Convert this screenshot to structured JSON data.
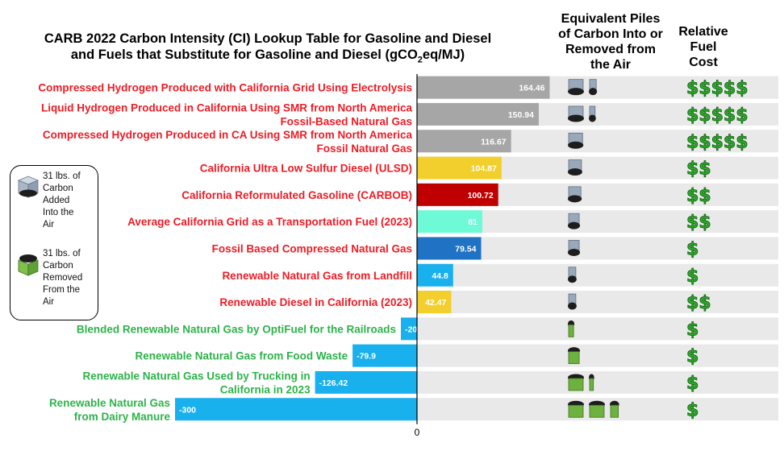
{
  "title_parts": [
    "CARB 2022 Carbon Intensity (CI) Lookup Table for Gasoline and Diesel",
    "and Fuels that Substitute for Gasoline and Diesel (gCO",
    "2",
    "eq/MJ)"
  ],
  "piles_header": [
    "Equivalent Piles",
    "of Carbon Into or",
    "Removed from",
    "the Air"
  ],
  "cost_header": [
    "Relative",
    "Fuel",
    "Cost"
  ],
  "legend": {
    "added": [
      "31 lbs. of",
      "Carbon",
      "Added",
      "Into the",
      "Air"
    ],
    "removed": [
      "31 lbs. of",
      "Carbon",
      "Removed",
      "From the",
      "Air"
    ]
  },
  "colors": {
    "red_label": "#ee1c25",
    "green_label": "#2db34a",
    "gray": "#a6a6a6",
    "yellow": "#f2cf2d",
    "darkred": "#c00000",
    "aqua": "#6efad6",
    "blue": "#1f72c4",
    "lightblue": "#19b0ee",
    "rowbg": "#e9e9e9"
  },
  "chart_data": {
    "type": "bar",
    "orientation": "horizontal",
    "zero_tick": "0",
    "grid": false,
    "categories": [
      [
        "Compressed Hydrogen Produced with California Grid Using Electrolysis"
      ],
      [
        "Liquid Hydrogen Produced in California Using SMR from North America",
        "Fossil-Based Natural Gas"
      ],
      [
        "Compressed Hydrogen Produced in CA Using  SMR from North America",
        "Fossil Natural Gas"
      ],
      [
        "California Ultra Low Sulfur Diesel (ULSD)"
      ],
      [
        "California Reformulated Gasoline (CARBOB)"
      ],
      [
        "Average California Grid as a Transportation Fuel (2023)"
      ],
      [
        "Fossil Based Compressed Natural Gas"
      ],
      [
        "Renewable Natural Gas from Landfill"
      ],
      [
        "Renewable Diesel in California (2023)"
      ],
      [
        "Blended Renewable Natural Gas by OptiFuel for the Railroads"
      ],
      [
        "Renewable Natural Gas from Food Waste"
      ],
      [
        "Renewable Natural Gas Used by Trucking in",
        "California in 2023"
      ],
      [
        "Renewable Natural Gas",
        "from Dairy Manure"
      ]
    ],
    "values": [
      164.46,
      150.94,
      116.67,
      104.87,
      100.72,
      81,
      79.54,
      44.8,
      42.47,
      -20,
      -79.9,
      -126.42,
      -300
    ],
    "value_labels": [
      "164.46",
      "150.94",
      "116.67",
      "104.87",
      "100.72",
      "81",
      "79.54",
      "44.8",
      "42.47",
      "-20",
      "-79.9",
      "-126.42",
      "-300"
    ],
    "bar_colors": [
      "gray",
      "gray",
      "gray",
      "yellow",
      "darkred",
      "aqua",
      "blue",
      "lightblue",
      "yellow",
      "lightblue",
      "lightblue",
      "lightblue",
      "lightblue"
    ],
    "label_colors": [
      "red_label",
      "red_label",
      "red_label",
      "red_label",
      "red_label",
      "red_label",
      "red_label",
      "red_label",
      "red_label",
      "green_label",
      "green_label",
      "green_label",
      "green_label"
    ],
    "carbon_piles": [
      1.3,
      1.2,
      0.95,
      0.85,
      0.8,
      0.65,
      0.65,
      0.35,
      0.35,
      -0.15,
      -0.65,
      -1.05,
      -2.4
    ],
    "relative_cost": [
      "$$$$$",
      "$$$$$",
      "$$$$$",
      "$$",
      "$$",
      "$$",
      "$",
      "$",
      "$$",
      "$",
      "$",
      "$",
      "$"
    ]
  }
}
